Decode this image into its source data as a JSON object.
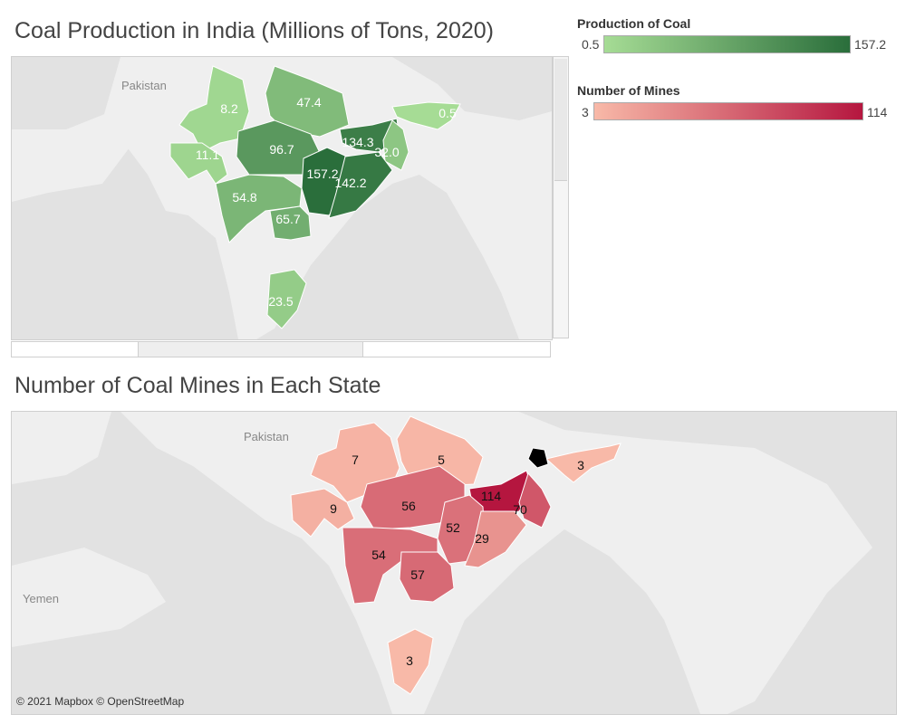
{
  "chart1": {
    "title": "Coal Production in India (Millions of Tons, 2020)",
    "country_labels": [
      "Pakistan"
    ],
    "values": [
      {
        "label": "8.2",
        "value": 8.2
      },
      {
        "label": "47.4",
        "value": 47.4
      },
      {
        "label": "0.5",
        "value": 0.5
      },
      {
        "label": "11.1",
        "value": 11.1
      },
      {
        "label": "96.7",
        "value": 96.7
      },
      {
        "label": "134.3",
        "value": 134.3
      },
      {
        "label": "32.0",
        "value": 32.0
      },
      {
        "label": "157.2",
        "value": 157.2
      },
      {
        "label": "142.2",
        "value": 142.2
      },
      {
        "label": "54.8",
        "value": 54.8
      },
      {
        "label": "65.7",
        "value": 65.7
      },
      {
        "label": "23.5",
        "value": 23.5
      }
    ]
  },
  "chart2": {
    "title": "Number of Coal Mines in Each State",
    "country_labels": [
      "Pakistan",
      "Yemen"
    ],
    "values": [
      {
        "label": "7",
        "value": 7
      },
      {
        "label": "5",
        "value": 5
      },
      {
        "label": "3",
        "value": 3
      },
      {
        "label": "9",
        "value": 9
      },
      {
        "label": "56",
        "value": 56
      },
      {
        "label": "114",
        "value": 114
      },
      {
        "label": "70",
        "value": 70
      },
      {
        "label": "52",
        "value": 52
      },
      {
        "label": "29",
        "value": 29
      },
      {
        "label": "54",
        "value": 54
      },
      {
        "label": "57",
        "value": 57
      },
      {
        "label": "3",
        "value": 3
      }
    ]
  },
  "legend_production": {
    "title": "Production of Coal",
    "min_label": "0.5",
    "max_label": "157.2",
    "min": 0.5,
    "max": 157.2,
    "color_low": "#a6dc95",
    "color_high": "#2a6e3b"
  },
  "legend_mines": {
    "title": "Number of Mines",
    "min_label": "3",
    "max_label": "114",
    "min": 3,
    "max": 114,
    "color_low": "#f8b9a8",
    "color_high": "#b5163f"
  },
  "attribution": "© 2021 Mapbox © OpenStreetMap",
  "colors": {
    "map_background": "#e2e2e2",
    "land": "#eeeeee",
    "state_border": "#ffffff"
  }
}
